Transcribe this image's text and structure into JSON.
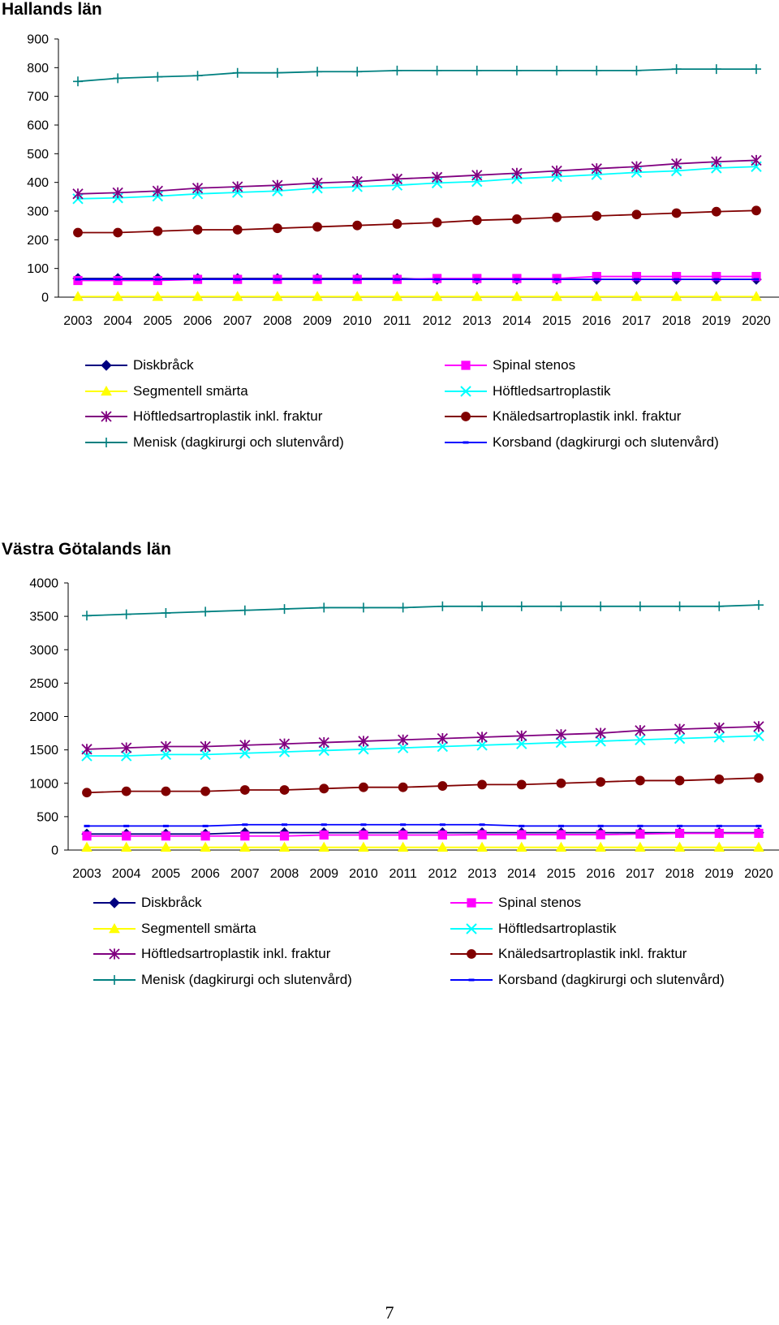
{
  "page_number": "7",
  "series_styles": [
    {
      "name": "Diskbråck",
      "color": "#000080",
      "marker": "diamond"
    },
    {
      "name": "Spinal stenos",
      "color": "#FF00FF",
      "marker": "square"
    },
    {
      "name": "Segmentell smärta",
      "color": "#FFFF00",
      "marker": "triangle"
    },
    {
      "name": "Höftledsartroplastik",
      "color": "#00FFFF",
      "marker": "x"
    },
    {
      "name": "Höftledsartroplastik inkl. fraktur",
      "color": "#800080",
      "marker": "star"
    },
    {
      "name": "Knäledsartroplastik inkl. fraktur",
      "color": "#800000",
      "marker": "circle"
    },
    {
      "name": "Menisk (dagkirurgi och slutenvård)",
      "color": "#008080",
      "marker": "plus"
    },
    {
      "name": "Korsband (dagkirurgi och slutenvård)",
      "color": "#0000FF",
      "marker": "dash"
    }
  ],
  "chart_data": [
    {
      "type": "line",
      "title": "Hallands län",
      "categories": [
        "2003",
        "2004",
        "2005",
        "2006",
        "2007",
        "2008",
        "2009",
        "2010",
        "2011",
        "2012",
        "2013",
        "2014",
        "2015",
        "2016",
        "2017",
        "2018",
        "2019",
        "2020"
      ],
      "y_ticks": [
        "0",
        "100",
        "200",
        "300",
        "400",
        "500",
        "600",
        "700",
        "800",
        "900"
      ],
      "ylim": [
        0,
        900
      ],
      "xlabel": "",
      "ylabel": "",
      "legend_position": "bottom",
      "series": [
        {
          "name": "Diskbråck",
          "values": [
            65,
            65,
            65,
            65,
            65,
            65,
            65,
            65,
            65,
            62,
            62,
            62,
            62,
            62,
            62,
            62,
            62,
            62
          ]
        },
        {
          "name": "Spinal stenos",
          "values": [
            58,
            58,
            58,
            62,
            62,
            62,
            62,
            62,
            62,
            65,
            65,
            65,
            65,
            72,
            72,
            72,
            72,
            72
          ]
        },
        {
          "name": "Segmentell smärta",
          "values": [
            2,
            2,
            2,
            2,
            2,
            2,
            2,
            2,
            2,
            2,
            2,
            2,
            2,
            2,
            2,
            2,
            2,
            2
          ]
        },
        {
          "name": "Höftledsartroplastik",
          "values": [
            343,
            346,
            352,
            360,
            365,
            370,
            380,
            385,
            390,
            398,
            403,
            413,
            420,
            427,
            435,
            440,
            450,
            455
          ]
        },
        {
          "name": "Höftledsartroplastik inkl. fraktur",
          "values": [
            360,
            364,
            370,
            380,
            385,
            390,
            398,
            403,
            412,
            418,
            425,
            432,
            440,
            448,
            455,
            465,
            472,
            477
          ]
        },
        {
          "name": "Knäledsartroplastik inkl. fraktur",
          "values": [
            225,
            225,
            230,
            235,
            235,
            240,
            245,
            250,
            255,
            260,
            268,
            272,
            278,
            283,
            288,
            293,
            298,
            302
          ]
        },
        {
          "name": "Menisk (dagkirurgi och slutenvård)",
          "values": [
            752,
            763,
            768,
            772,
            782,
            782,
            786,
            786,
            790,
            790,
            790,
            790,
            790,
            790,
            790,
            795,
            795,
            795
          ]
        },
        {
          "name": "Korsband (dagkirurgi och slutenvård)",
          "values": [
            62,
            62,
            62,
            62,
            62,
            62,
            62,
            62,
            62,
            62,
            62,
            62,
            62,
            62,
            62,
            62,
            62,
            62
          ]
        }
      ]
    },
    {
      "type": "line",
      "title": "Västra Götalands län",
      "categories": [
        "2003",
        "2004",
        "2005",
        "2006",
        "2007",
        "2008",
        "2009",
        "2010",
        "2011",
        "2012",
        "2013",
        "2014",
        "2015",
        "2016",
        "2017",
        "2018",
        "2019",
        "2020"
      ],
      "y_ticks": [
        "0",
        "500",
        "1000",
        "1500",
        "2000",
        "2500",
        "3000",
        "3500",
        "4000"
      ],
      "ylim": [
        0,
        4000
      ],
      "xlabel": "",
      "ylabel": "",
      "legend_position": "bottom",
      "series": [
        {
          "name": "Diskbråck",
          "values": [
            240,
            240,
            240,
            240,
            260,
            260,
            260,
            260,
            260,
            260,
            260,
            260,
            260,
            260,
            260,
            260,
            260,
            260
          ]
        },
        {
          "name": "Spinal stenos",
          "values": [
            210,
            210,
            210,
            210,
            210,
            210,
            225,
            225,
            225,
            225,
            230,
            230,
            230,
            230,
            240,
            250,
            250,
            250
          ]
        },
        {
          "name": "Segmentell smärta",
          "values": [
            40,
            40,
            40,
            40,
            40,
            40,
            40,
            40,
            40,
            40,
            40,
            40,
            40,
            40,
            40,
            40,
            40,
            40
          ]
        },
        {
          "name": "Höftledsartroplastik",
          "values": [
            1410,
            1410,
            1430,
            1430,
            1450,
            1470,
            1490,
            1510,
            1530,
            1550,
            1570,
            1590,
            1610,
            1630,
            1650,
            1670,
            1690,
            1710
          ]
        },
        {
          "name": "Höftledsartroplastik inkl. fraktur",
          "values": [
            1510,
            1530,
            1550,
            1550,
            1570,
            1590,
            1610,
            1630,
            1650,
            1670,
            1690,
            1710,
            1730,
            1750,
            1790,
            1810,
            1830,
            1850
          ]
        },
        {
          "name": "Knäledsartroplastik inkl. fraktur",
          "values": [
            860,
            880,
            880,
            880,
            900,
            900,
            920,
            940,
            940,
            960,
            980,
            980,
            1000,
            1020,
            1040,
            1040,
            1060,
            1080
          ]
        },
        {
          "name": "Menisk (dagkirurgi och slutenvård)",
          "values": [
            3510,
            3530,
            3550,
            3570,
            3590,
            3610,
            3630,
            3630,
            3630,
            3650,
            3650,
            3650,
            3650,
            3650,
            3650,
            3650,
            3650,
            3670
          ]
        },
        {
          "name": "Korsband (dagkirurgi och slutenvård)",
          "values": [
            360,
            360,
            360,
            360,
            380,
            380,
            380,
            380,
            380,
            380,
            380,
            360,
            360,
            360,
            360,
            360,
            360,
            360
          ]
        }
      ]
    }
  ],
  "legends": [
    {
      "items": [
        "Diskbråck",
        "Spinal stenos",
        "Segmentell smärta",
        "Höftledsartroplastik",
        "Höftledsartroplastik inkl. fraktur",
        "Knäledsartroplastik inkl. fraktur",
        "Menisk (dagkirurgi och slutenvård)",
        "Korsband (dagkirurgi och slutenvård)"
      ]
    },
    {
      "items": [
        "Diskbråck",
        "Spinal stenos",
        "Segmentell smärta",
        "Höftledsartroplastik",
        "Höftledsartroplastik inkl. fraktur",
        "Knäledsartroplastik inkl. fraktur",
        "Menisk (dagkirurgi och slutenvård)",
        "Korsband (dagkirurgi och slutenvård)"
      ]
    }
  ]
}
